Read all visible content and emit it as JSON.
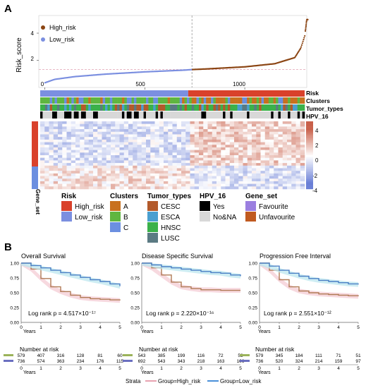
{
  "panels": {
    "a": "A",
    "b": "B"
  },
  "colors": {
    "high": "#8b4513",
    "low": "#7b8fe0",
    "cut": "#999999",
    "cl_a": "#c8711f",
    "cl_b": "#5fb640",
    "cl_c": "#6b8fe0",
    "tt_cesc": "#b35a2b",
    "tt_esca": "#4a9fd0",
    "tt_hnsc": "#3bb14a",
    "tt_lusc": "#5b7a83",
    "hpv_yes": "#000000",
    "hpv_no": "#d8d8d8",
    "gs_fav": "#9b7fe0",
    "gs_unfav": "#c05a20",
    "heat_hi": "#c9604a",
    "heat_mid": "#ffffff",
    "heat_lo": "#6a7fd6"
  },
  "chart_data": [
    {
      "type": "scatter",
      "ylabel": "Risk_score",
      "xlabel": "",
      "xlim": [
        -30,
        1310
      ],
      "ylim": [
        0,
        5.3
      ],
      "xticks": [
        0,
        500,
        1000
      ],
      "yticks": [
        2,
        4
      ],
      "cutoff_x": 736,
      "cutoff_y": 1.32,
      "legend_position": "top-left",
      "legend": [
        "High_risk",
        "Low_risk"
      ],
      "n_low": 736,
      "n_high": 579,
      "x_samples": [
        1,
        50,
        150,
        300,
        500,
        700,
        736,
        800,
        1000,
        1150,
        1250,
        1280,
        1300,
        1310
      ],
      "y_samples": [
        0.35,
        0.6,
        0.8,
        0.98,
        1.15,
        1.28,
        1.32,
        1.36,
        1.52,
        1.75,
        2.2,
        2.9,
        3.8,
        5.0
      ]
    },
    {
      "type": "heatmap",
      "annotation_tracks": [
        "Risk",
        "Clusters",
        "Tumor_types",
        "HPV_16"
      ],
      "row_annotation": "Gene_set",
      "color_scale_ticks": [
        4,
        2,
        0,
        -2,
        -4
      ],
      "legends": [
        {
          "title": "Risk",
          "items": [
            "High_risk",
            "Low_risk"
          ]
        },
        {
          "title": "Clusters",
          "items": [
            "A",
            "B",
            "C"
          ]
        },
        {
          "title": "Tumor_types",
          "items": [
            "CESC",
            "ESCA",
            "HNSC",
            "LUSC"
          ]
        },
        {
          "title": "HPV_16",
          "items": [
            "Yes",
            "No&NA"
          ]
        },
        {
          "title": "Gene_set",
          "items": [
            "Favourite",
            "Unfavourite"
          ]
        }
      ]
    },
    {
      "type": "line",
      "title": "Overall Survival",
      "xlabel": "Years",
      "xticks": [
        0,
        1,
        2,
        3,
        4,
        5
      ],
      "yticks": [
        "1.00",
        "0.75",
        "0.50",
        "0.25",
        "0.00"
      ],
      "ylim": [
        0,
        1
      ],
      "annotation": "Log rank p = 4.517×10⁻¹⁷",
      "series": [
        {
          "name": "Group=High_risk",
          "x": [
            0,
            0.5,
            1,
            1.5,
            2,
            2.5,
            3,
            3.5,
            4,
            4.5,
            5
          ],
          "values": [
            1.0,
            0.9,
            0.74,
            0.6,
            0.52,
            0.46,
            0.42,
            0.4,
            0.39,
            0.38,
            0.37
          ]
        },
        {
          "name": "Group=Low_risk",
          "x": [
            0,
            0.5,
            1,
            1.5,
            2,
            2.5,
            3,
            3.5,
            4,
            4.5,
            5
          ],
          "values": [
            1.0,
            0.96,
            0.92,
            0.88,
            0.84,
            0.8,
            0.76,
            0.72,
            0.69,
            0.65,
            0.61
          ]
        }
      ],
      "risk_table": {
        "title": "Number at risk",
        "High_risk": [
          "579",
          "407",
          "316",
          "128",
          "81",
          "60"
        ],
        "Low_risk": [
          "736",
          "574",
          "363",
          "234",
          "176",
          "115"
        ]
      }
    },
    {
      "type": "line",
      "title": "Disease Specific Survival",
      "xlabel": "Years",
      "xticks": [
        0,
        1,
        2,
        3,
        4,
        5
      ],
      "yticks": [
        "1.00",
        "0.75",
        "0.50",
        "0.25",
        "0.00"
      ],
      "ylim": [
        0,
        1
      ],
      "annotation": "Log rank p = 2.220×10⁻¹⁶",
      "series": [
        {
          "name": "Group=High_risk",
          "x": [
            0,
            0.5,
            1,
            1.5,
            2,
            2.5,
            3,
            3.5,
            4,
            4.5,
            5
          ],
          "values": [
            1.0,
            0.92,
            0.8,
            0.68,
            0.6,
            0.57,
            0.55,
            0.55,
            0.54,
            0.54,
            0.54
          ]
        },
        {
          "name": "Group=Low_risk",
          "x": [
            0,
            0.5,
            1,
            1.5,
            2,
            2.5,
            3,
            3.5,
            4,
            4.5,
            5
          ],
          "values": [
            1.0,
            0.97,
            0.94,
            0.92,
            0.9,
            0.88,
            0.86,
            0.84,
            0.83,
            0.8,
            0.78
          ]
        }
      ],
      "risk_table": {
        "title": "Number at risk",
        "High_risk": [
          "543",
          "385",
          "199",
          "116",
          "72",
          "53"
        ],
        "Low_risk": [
          "692",
          "543",
          "343",
          "218",
          "163",
          "106"
        ]
      }
    },
    {
      "type": "line",
      "title": "Progression Free Interval",
      "xlabel": "Years",
      "xticks": [
        0,
        1,
        2,
        3,
        4,
        5
      ],
      "yticks": [
        "1.00",
        "0.75",
        "0.50",
        "0.25",
        "0.00"
      ],
      "ylim": [
        0,
        1
      ],
      "annotation": "Log rank p = 2.551×10⁻¹²",
      "series": [
        {
          "name": "Group=High_risk",
          "x": [
            0,
            0.5,
            1,
            1.5,
            2,
            2.5,
            3,
            3.5,
            4,
            4.5,
            5
          ],
          "values": [
            1.0,
            0.88,
            0.72,
            0.6,
            0.53,
            0.5,
            0.48,
            0.47,
            0.46,
            0.45,
            0.44
          ]
        },
        {
          "name": "Group=Low_risk",
          "x": [
            0,
            0.5,
            1,
            1.5,
            2,
            2.5,
            3,
            3.5,
            4,
            4.5,
            5
          ],
          "values": [
            1.0,
            0.95,
            0.88,
            0.83,
            0.78,
            0.74,
            0.71,
            0.69,
            0.67,
            0.65,
            0.64
          ]
        }
      ],
      "risk_table": {
        "title": "Number at risk",
        "High_risk": [
          "579",
          "345",
          "184",
          "111",
          "71",
          "51"
        ],
        "Low_risk": [
          "736",
          "520",
          "324",
          "214",
          "159",
          "97"
        ]
      }
    }
  ],
  "strata": {
    "title": "Strata",
    "high": "Group=High_risk",
    "low": "Group=Low_risk"
  }
}
